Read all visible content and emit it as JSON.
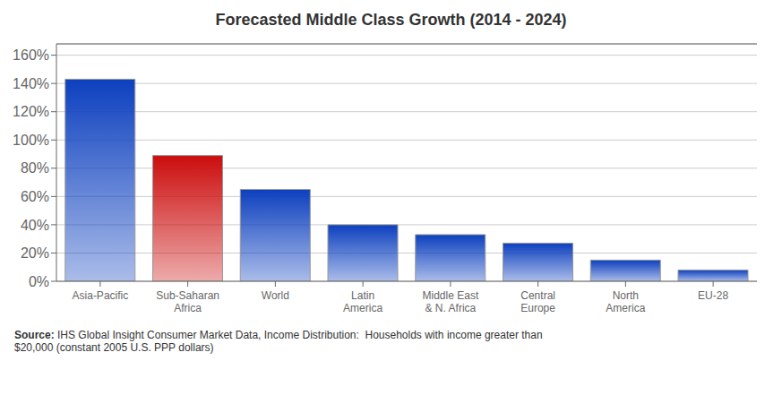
{
  "chart_data": {
    "type": "bar",
    "title": "Forecasted Middle Class Growth (2014 - 2024)",
    "categories": [
      "Asia-Pacific",
      "Sub-Saharan\nAfrica",
      "World",
      "Latin\nAmerica",
      "Middle East\n& N. Africa",
      "Central\nEurope",
      "North\nAmerica",
      "EU-28"
    ],
    "values": [
      1.43,
      0.89,
      0.65,
      0.4,
      0.33,
      0.27,
      0.15,
      0.08
    ],
    "colors": [
      "#0d40bf",
      "#cc0d0d",
      "#0d40bf",
      "#0d40bf",
      "#0d40bf",
      "#0d40bf",
      "#0d40bf",
      "#0d40bf"
    ],
    "ylim": [
      0,
      1.68
    ],
    "yticks": [
      {
        "value": 0.0,
        "label": "0%"
      },
      {
        "value": 0.2,
        "label": "20%"
      },
      {
        "value": 0.4,
        "label": "40%"
      },
      {
        "value": 0.6,
        "label": "60%"
      },
      {
        "value": 0.8,
        "label": "80%"
      },
      {
        "value": 1.0,
        "label": "100%"
      },
      {
        "value": 1.2,
        "label": "120%"
      },
      {
        "value": 1.4,
        "label": "140%"
      },
      {
        "value": 1.6,
        "label": "160%"
      }
    ],
    "grid": true,
    "annotations": [
      "Source:",
      " IHS Global Insight Consumer Market Data, Income Distribution:  Households with income greater than\n$20,000 (constant 2005 U.S. PPP dollars)"
    ]
  }
}
